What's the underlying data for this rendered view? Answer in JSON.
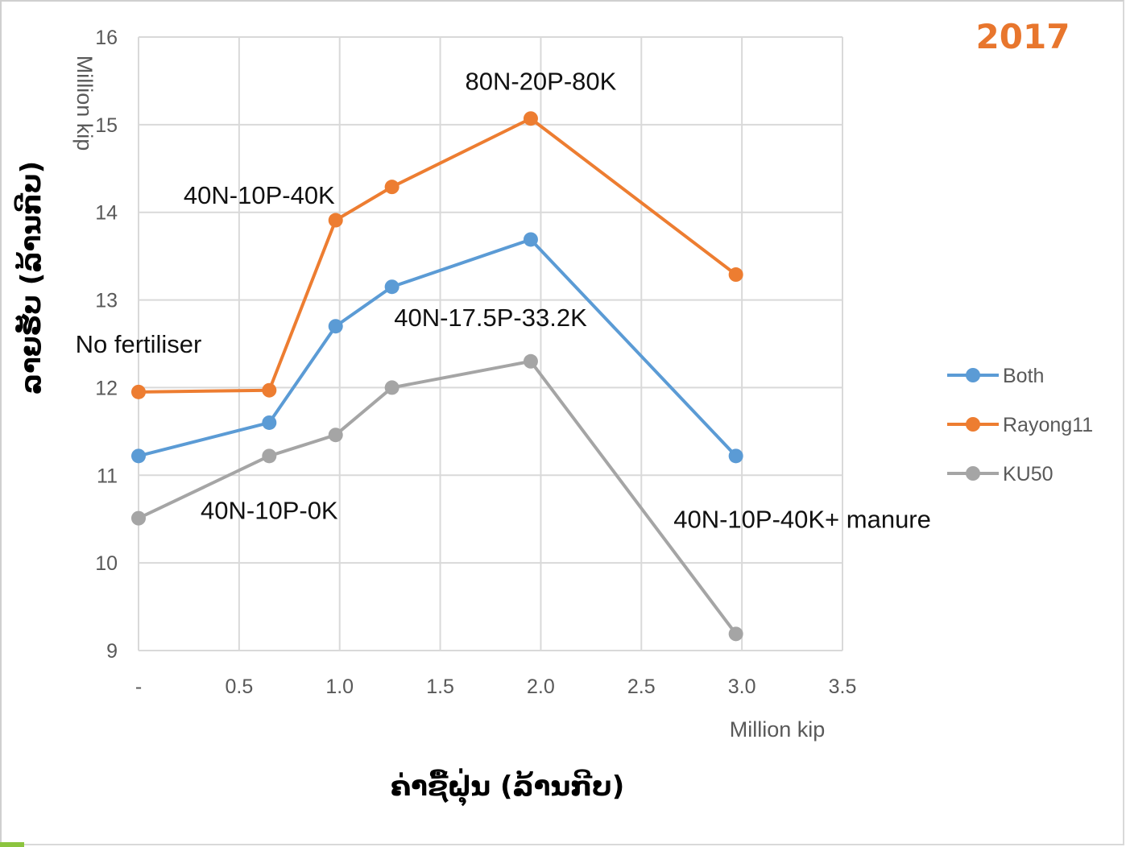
{
  "chart_data": {
    "type": "line",
    "title": "2017",
    "xlabel": "ຄ່າຊື້ຝຸ່ນ (ລ້ານກີບ)",
    "ylabel": "ລາຍຮັບ (ລ້ານກີບ)",
    "x_unit_label": "Million kip",
    "y_unit_label": "Million kip",
    "xlim": [
      0,
      3.5
    ],
    "ylim": [
      9,
      16
    ],
    "x_ticks": [
      {
        "value": 0,
        "label": "-"
      },
      {
        "value": 0.5,
        "label": "0.5"
      },
      {
        "value": 1.0,
        "label": "1.0"
      },
      {
        "value": 1.5,
        "label": "1.5"
      },
      {
        "value": 2.0,
        "label": "2.0"
      },
      {
        "value": 2.5,
        "label": "2.5"
      },
      {
        "value": 3.0,
        "label": "3.0"
      },
      {
        "value": 3.5,
        "label": "3.5"
      }
    ],
    "y_ticks": [
      9,
      10,
      11,
      12,
      13,
      14,
      15,
      16
    ],
    "grid": true,
    "legend_position": "right",
    "series": [
      {
        "name": "Both",
        "color": "#5b9bd5",
        "points": [
          [
            0,
            11.22
          ],
          [
            0.65,
            11.6
          ],
          [
            0.98,
            12.7
          ],
          [
            1.26,
            13.15
          ],
          [
            1.95,
            13.69
          ],
          [
            2.97,
            11.22
          ]
        ]
      },
      {
        "name": "Rayong11",
        "color": "#ed7d31",
        "points": [
          [
            0,
            11.95
          ],
          [
            0.65,
            11.97
          ],
          [
            0.98,
            13.91
          ],
          [
            1.26,
            14.29
          ],
          [
            1.95,
            15.07
          ],
          [
            2.97,
            13.29
          ]
        ]
      },
      {
        "name": "KU50",
        "color": "#a5a5a5",
        "points": [
          [
            0,
            10.51
          ],
          [
            0.65,
            11.22
          ],
          [
            0.98,
            11.46
          ],
          [
            1.26,
            12.0
          ],
          [
            1.95,
            12.3
          ],
          [
            2.97,
            9.19
          ]
        ]
      }
    ],
    "annotations": [
      {
        "text": "No fertiliser",
        "near": [
          0,
          12.4
        ]
      },
      {
        "text": "40N-10P-0K",
        "near": [
          0.65,
          10.5
        ]
      },
      {
        "text": "40N-10P-40K",
        "near": [
          0.6,
          14.1
        ]
      },
      {
        "text": "40N-17.5P-33.2K",
        "near": [
          1.75,
          12.7
        ]
      },
      {
        "text": "80N-20P-80K",
        "near": [
          2.0,
          15.4
        ]
      },
      {
        "text": "40N-10P-40K+ manure",
        "near": [
          3.3,
          10.4
        ]
      }
    ]
  }
}
